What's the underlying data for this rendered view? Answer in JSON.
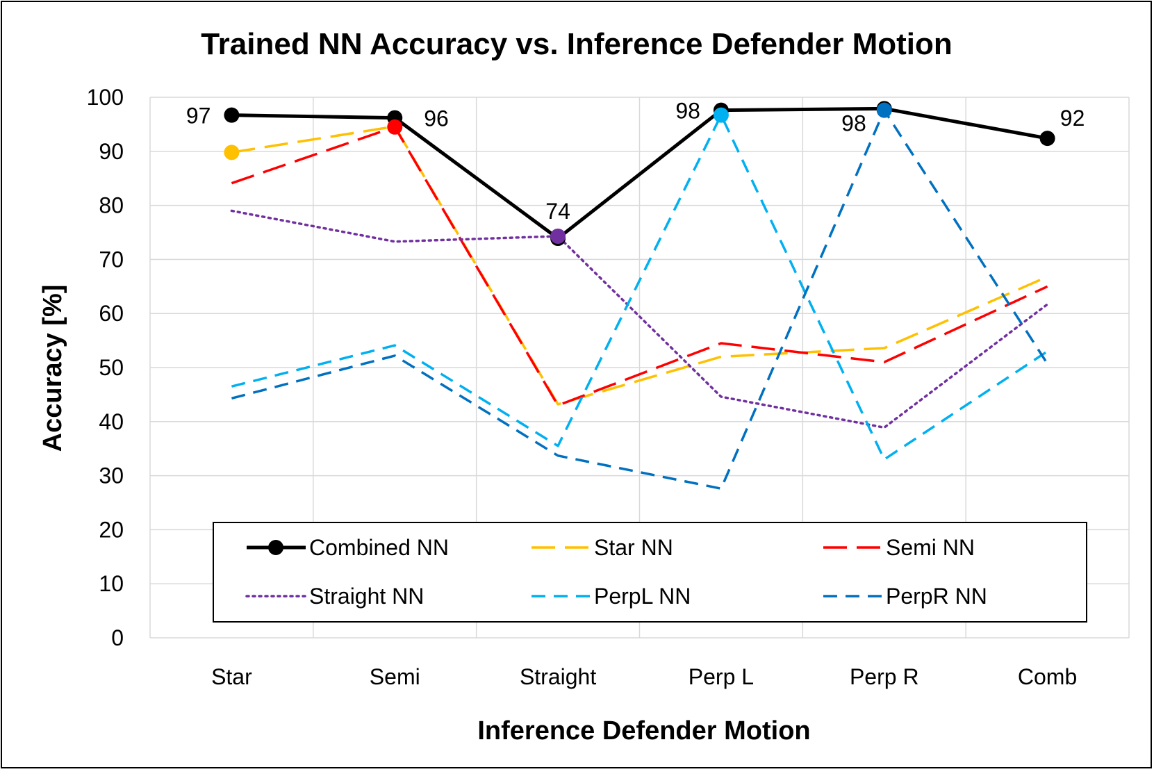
{
  "chart_data": {
    "type": "line",
    "title": "Trained NN Accuracy vs. Inference Defender Motion",
    "xlabel": "Inference Defender Motion",
    "ylabel": "Accuracy [%]",
    "categories": [
      "Star",
      "Semi",
      "Straight",
      "Perp L",
      "Perp R",
      "Comb"
    ],
    "ylim": [
      0,
      100
    ],
    "yticks": [
      0,
      10,
      20,
      30,
      40,
      50,
      60,
      70,
      80,
      90,
      100
    ],
    "grid": true,
    "legend_position": "bottom-inside",
    "series": [
      {
        "name": "Combined NN",
        "color": "#000000",
        "style": "solid",
        "values": [
          96.7,
          96.2,
          73.9,
          97.6,
          97.9,
          92.4
        ]
      },
      {
        "name": "Star NN",
        "color": "#FFC000",
        "style": "longdash",
        "values": [
          89.8,
          94.6,
          43.2,
          52.0,
          53.6,
          66.8
        ]
      },
      {
        "name": "Semi NN",
        "color": "#FF0000",
        "style": "longdash",
        "values": [
          84.1,
          94.5,
          43.0,
          54.5,
          51.0,
          65.0
        ]
      },
      {
        "name": "Straight NN",
        "color": "#7030A0",
        "style": "dotted",
        "values": [
          79.0,
          73.3,
          74.3,
          44.6,
          38.9,
          61.7
        ]
      },
      {
        "name": "PerpL NN",
        "color": "#00B0F0",
        "style": "dash",
        "values": [
          46.5,
          54.1,
          35.5,
          96.7,
          33.0,
          53.0
        ]
      },
      {
        "name": "PerpR NN",
        "color": "#0070C0",
        "style": "dash",
        "values": [
          44.3,
          52.2,
          33.7,
          27.6,
          97.6,
          50.7
        ]
      }
    ],
    "markers": [
      {
        "series": "Combined NN",
        "indices": [
          0,
          1,
          2,
          3,
          4,
          5
        ]
      },
      {
        "series": "Star NN",
        "indices": [
          0
        ]
      },
      {
        "series": "Semi NN",
        "indices": [
          1
        ]
      },
      {
        "series": "Straight NN",
        "indices": [
          2
        ]
      },
      {
        "series": "PerpL NN",
        "indices": [
          3
        ]
      },
      {
        "series": "PerpR NN",
        "indices": [
          4
        ]
      }
    ],
    "data_labels": [
      {
        "series": "Combined NN",
        "index": 0,
        "text": "97",
        "anchor": "left"
      },
      {
        "series": "Combined NN",
        "index": 1,
        "text": "96",
        "anchor": "right"
      },
      {
        "series": "Combined NN",
        "index": 2,
        "text": "74",
        "anchor": "above"
      },
      {
        "series": "Combined NN",
        "index": 3,
        "text": "98",
        "anchor": "left"
      },
      {
        "series": "Combined NN",
        "index": 4,
        "text": "98",
        "anchor": "below-left"
      },
      {
        "series": "Combined NN",
        "index": 5,
        "text": "92",
        "anchor": "above-right"
      }
    ]
  }
}
